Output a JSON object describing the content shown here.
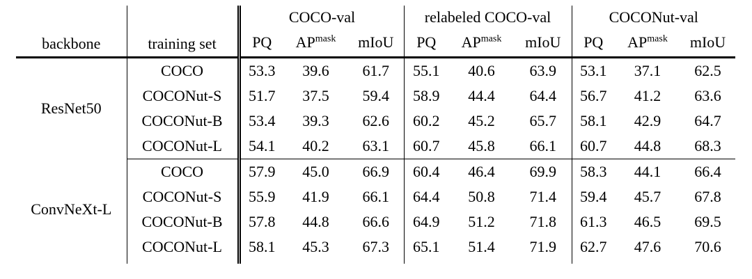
{
  "table": {
    "corner": {
      "backbone": "backbone",
      "training_set": "training set"
    },
    "groups": [
      {
        "name": "COCO-val"
      },
      {
        "name": "relabeled COCO-val"
      },
      {
        "name": "COCONut-val"
      }
    ],
    "metric_headers": [
      {
        "base": "PQ",
        "sup": ""
      },
      {
        "base": "AP",
        "sup": "mask"
      },
      {
        "base": "mIoU",
        "sup": ""
      }
    ],
    "blocks": [
      {
        "backbone": "ResNet50",
        "rows": [
          {
            "training_set": "COCO",
            "values": [
              "53.3",
              "39.6",
              "61.7",
              "55.1",
              "40.6",
              "63.9",
              "53.1",
              "37.1",
              "62.5"
            ]
          },
          {
            "training_set": "COCONut-S",
            "values": [
              "51.7",
              "37.5",
              "59.4",
              "58.9",
              "44.4",
              "64.4",
              "56.7",
              "41.2",
              "63.6"
            ]
          },
          {
            "training_set": "COCONut-B",
            "values": [
              "53.4",
              "39.3",
              "62.6",
              "60.2",
              "45.2",
              "65.7",
              "58.1",
              "42.9",
              "64.7"
            ]
          },
          {
            "training_set": "COCONut-L",
            "values": [
              "54.1",
              "40.2",
              "63.1",
              "60.7",
              "45.8",
              "66.1",
              "60.7",
              "44.8",
              "68.3"
            ]
          }
        ]
      },
      {
        "backbone": "ConvNeXt-L",
        "rows": [
          {
            "training_set": "COCO",
            "values": [
              "57.9",
              "45.0",
              "66.9",
              "60.4",
              "46.4",
              "69.9",
              "58.3",
              "44.1",
              "66.4"
            ]
          },
          {
            "training_set": "COCONut-S",
            "values": [
              "55.9",
              "41.9",
              "66.1",
              "64.4",
              "50.8",
              "71.4",
              "59.4",
              "45.7",
              "67.8"
            ]
          },
          {
            "training_set": "COCONut-B",
            "values": [
              "57.8",
              "44.8",
              "66.6",
              "64.9",
              "51.2",
              "71.8",
              "61.3",
              "46.5",
              "69.5"
            ]
          },
          {
            "training_set": "COCONut-L",
            "values": [
              "58.1",
              "45.3",
              "67.3",
              "65.1",
              "51.4",
              "71.9",
              "62.7",
              "47.6",
              "70.6"
            ]
          }
        ]
      }
    ]
  },
  "colors": {
    "text": "#000000",
    "background": "#ffffff",
    "rule": "#000000"
  }
}
